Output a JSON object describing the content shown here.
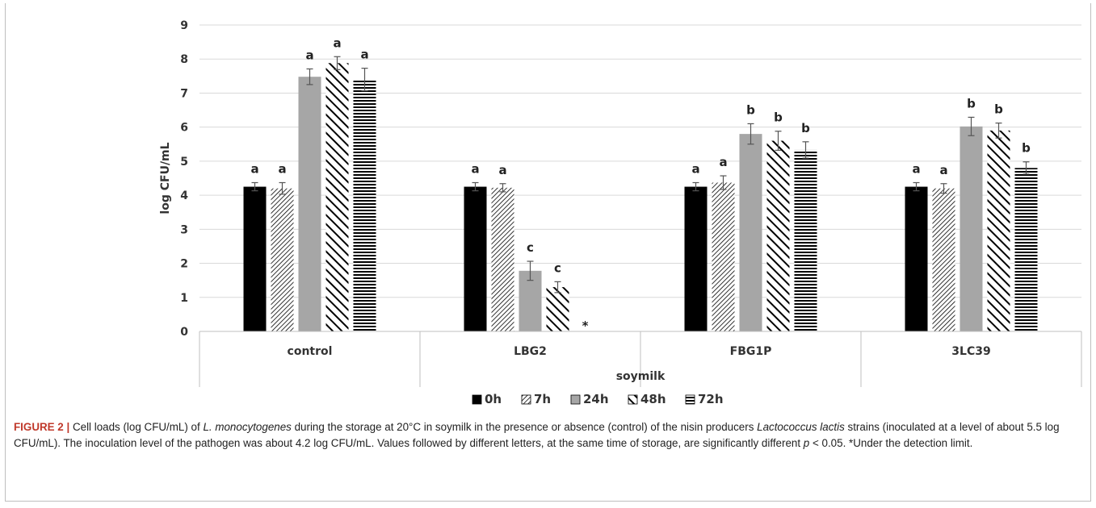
{
  "chart_data": {
    "type": "bar",
    "categories": [
      "control",
      "LBG2",
      "FBG1P",
      "3LC39"
    ],
    "xlabel": "soymilk",
    "ylabel": "log CFU/mL",
    "ylim": [
      0,
      9
    ],
    "yticks": [
      0,
      1,
      2,
      3,
      4,
      5,
      6,
      7,
      8,
      9
    ],
    "grid": true,
    "legend_position": "bottom",
    "series": [
      {
        "name": "0h",
        "pattern": "solid-black",
        "values": [
          4.25,
          4.25,
          4.25,
          4.25
        ],
        "errors": [
          0.12,
          0.12,
          0.12,
          0.12
        ],
        "letters": [
          "a",
          "a",
          "a",
          "a"
        ]
      },
      {
        "name": "7h",
        "pattern": "fine-diagonal",
        "values": [
          4.2,
          4.22,
          4.37,
          4.2
        ],
        "errors": [
          0.17,
          0.12,
          0.2,
          0.14
        ],
        "letters": [
          "a",
          "a",
          "a",
          "a"
        ]
      },
      {
        "name": "24h",
        "pattern": "solid-gray",
        "values": [
          7.48,
          1.78,
          5.8,
          6.02
        ],
        "errors": [
          0.23,
          0.28,
          0.3,
          0.27
        ],
        "letters": [
          "a",
          "c",
          "b",
          "b"
        ]
      },
      {
        "name": "48h",
        "pattern": "wide-diagonal",
        "values": [
          7.88,
          1.3,
          5.6,
          5.9
        ],
        "errors": [
          0.19,
          0.16,
          0.28,
          0.22
        ],
        "letters": [
          "a",
          "c",
          "b",
          "b"
        ]
      },
      {
        "name": "72h",
        "pattern": "horizontal-lines",
        "values": [
          7.4,
          null,
          5.33,
          4.8
        ],
        "errors": [
          0.33,
          null,
          0.24,
          0.18
        ],
        "letters": [
          "a",
          "*",
          "b",
          "b"
        ]
      }
    ]
  },
  "caption": {
    "label": "FIGURE 2 |",
    "t1": " Cell loads (log CFU/mL) of ",
    "species": "L. monocytogenes",
    "t2": " during the storage at 20°C in soymilk in the presence or absence (control) of the nisin producers ",
    "genus": "Lactococcus lactis",
    "t3": " strains (inoculated at a level of about 5.5 log CFU/mL). The inoculation level of the pathogen was about 4.2 log CFU/mL. Values followed by different letters, at the same time of storage, are significantly different ",
    "pvar": "p",
    "t4": " < 0.05. *Under the detection limit."
  }
}
